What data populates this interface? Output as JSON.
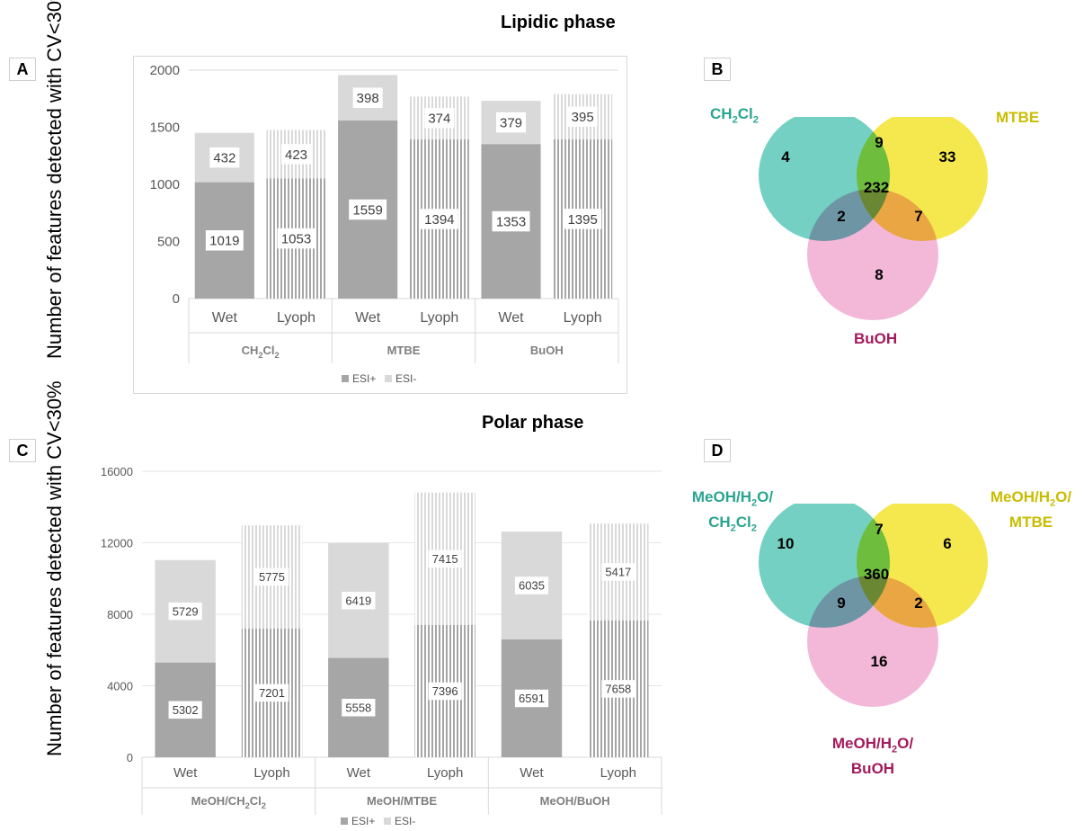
{
  "sections": {
    "lipid_title": "Lipidic phase",
    "polar_title": "Polar phase"
  },
  "panels": {
    "a": "A",
    "b": "B",
    "c": "C",
    "d": "D"
  },
  "colors": {
    "esi_plus": "#a6a6a6",
    "esi_minus": "#d9d9d9",
    "venn_ch2cl2": "#4cc3b2",
    "venn_mtbe": "#f2e21e",
    "venn_buoh": "#f0a3cc",
    "label_teal": "#2aa58f",
    "label_yellow": "#c9bd00",
    "label_magenta": "#a3195b"
  },
  "chart_data": [
    {
      "type": "bar",
      "stacked": true,
      "ylabel": "Number of features detected with CV<30%",
      "ylim": [
        0,
        2000
      ],
      "yticks": [
        0,
        500,
        1000,
        1500,
        2000
      ],
      "categories": [
        "Wet",
        "Lyoph",
        "Wet",
        "Lyoph",
        "Wet",
        "Lyoph"
      ],
      "groups": [
        "CH2Cl2",
        "MTBE",
        "BuOH"
      ],
      "group_labels": [
        {
          "main": "CH",
          "sub1": "2",
          "mid": "Cl",
          "sub2": "2"
        },
        {
          "main": "MTBE",
          "sub1": "",
          "mid": "",
          "sub2": ""
        },
        {
          "main": "BuOH",
          "sub1": "",
          "mid": "",
          "sub2": ""
        }
      ],
      "hatched": [
        false,
        true,
        false,
        true,
        false,
        true
      ],
      "series": [
        {
          "name": "ESI+",
          "values": [
            1019,
            1053,
            1559,
            1394,
            1353,
            1395
          ]
        },
        {
          "name": "ESI-",
          "values": [
            432,
            423,
            398,
            374,
            379,
            395
          ]
        }
      ],
      "legend": "bottom",
      "grid": false
    },
    {
      "type": "venn",
      "sets": [
        "CH2Cl2",
        "MTBE",
        "BuOH"
      ],
      "set_labels": [
        {
          "main": "CH",
          "sub1": "2",
          "mid": "Cl",
          "sub2": "2",
          "tail": ""
        },
        {
          "main": "MTBE",
          "sub1": "",
          "mid": "",
          "sub2": "",
          "tail": ""
        },
        {
          "main": "BuOH",
          "sub1": "",
          "mid": "",
          "sub2": "",
          "tail": ""
        }
      ],
      "regions": {
        "a_only": 4,
        "b_only": 33,
        "c_only": 8,
        "ab": 9,
        "ac": 2,
        "bc": 7,
        "abc": 232
      }
    },
    {
      "type": "bar",
      "stacked": true,
      "ylabel": "Number of features detected with CV<30%",
      "ylim": [
        0,
        16000
      ],
      "yticks": [
        0,
        4000,
        8000,
        12000,
        16000
      ],
      "categories": [
        "Wet",
        "Lyoph",
        "Wet",
        "Lyoph",
        "Wet",
        "Lyoph"
      ],
      "groups": [
        "MeOH/CH2Cl2",
        "MeOH/MTBE",
        "MeOH/BuOH"
      ],
      "group_labels": [
        {
          "main": "MeOH/CH",
          "sub1": "2",
          "mid": "Cl",
          "sub2": "2"
        },
        {
          "main": "MeOH/MTBE",
          "sub1": "",
          "mid": "",
          "sub2": ""
        },
        {
          "main": "MeOH/BuOH",
          "sub1": "",
          "mid": "",
          "sub2": ""
        }
      ],
      "hatched": [
        false,
        true,
        false,
        true,
        false,
        true
      ],
      "series": [
        {
          "name": "ESI+",
          "values": [
            5302,
            7201,
            5558,
            7396,
            6591,
            7658
          ]
        },
        {
          "name": "ESI-",
          "values": [
            5729,
            5775,
            6419,
            7415,
            6035,
            5417
          ]
        }
      ],
      "legend": "bottom",
      "grid": true
    },
    {
      "type": "venn",
      "sets": [
        "MeOH/H2O/CH2Cl2",
        "MeOH/H2O/MTBE",
        "MeOH/H2O/BuOH"
      ],
      "set_labels": [
        {
          "line1": "MeOH/H",
          "sub1": "2",
          "line1b": "O/",
          "line2": "CH",
          "sub2": "2",
          "line2b": "Cl",
          "sub3": "2"
        },
        {
          "line1": "MeOH/H",
          "sub1": "2",
          "line1b": "O/",
          "line2": "MTBE",
          "sub2": "",
          "line2b": "",
          "sub3": ""
        },
        {
          "line1": "MeOH/H",
          "sub1": "2",
          "line1b": "O/",
          "line2": "BuOH",
          "sub2": "",
          "line2b": "",
          "sub3": ""
        }
      ],
      "regions": {
        "a_only": 10,
        "b_only": 6,
        "c_only": 16,
        "ab": 7,
        "ac": 9,
        "bc": 2,
        "abc": 360
      }
    }
  ]
}
